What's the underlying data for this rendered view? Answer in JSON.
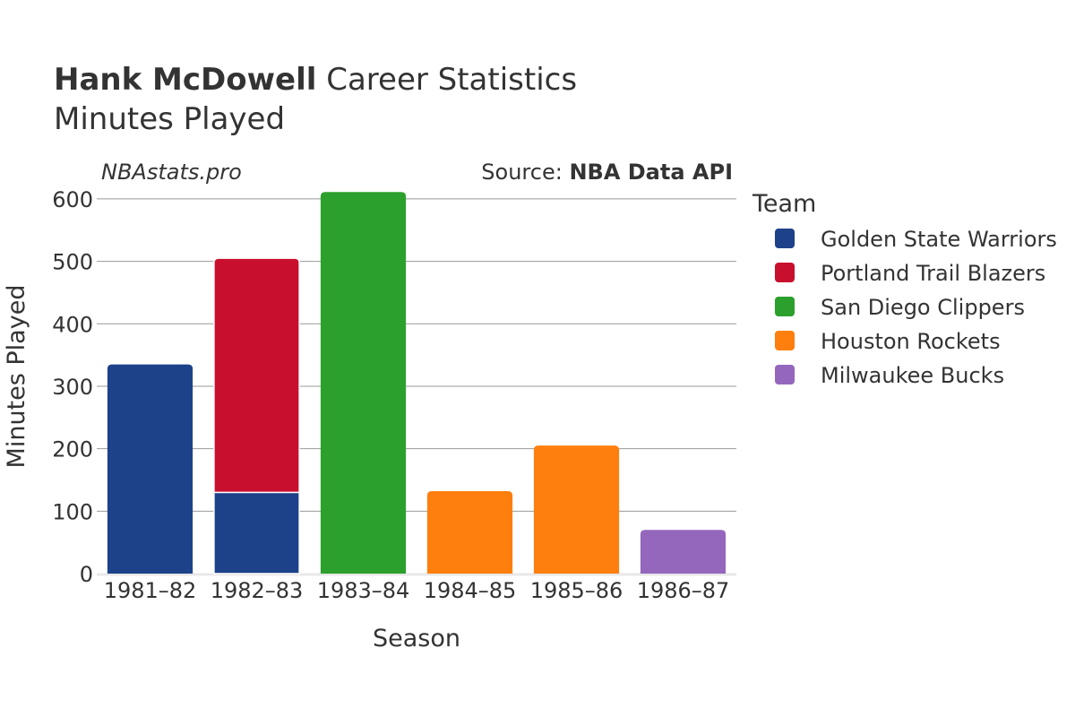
{
  "title": {
    "bold": "Hank McDowell",
    "rest": " Career Statistics",
    "subtitle": "Minutes Played"
  },
  "watermark": "NBAstats.pro",
  "source": {
    "prefix": "Source: ",
    "name": "NBA Data API"
  },
  "chart_data": {
    "type": "bar",
    "stacked": true,
    "categories": [
      "1981–82",
      "1982–83",
      "1983–84",
      "1984–85",
      "1985–86",
      "1986–87"
    ],
    "xlabel": "Season",
    "ylabel": "Minutes Played",
    "ylim": [
      0,
      620
    ],
    "yticks": [
      0,
      100,
      200,
      300,
      400,
      500,
      600
    ],
    "grid": true,
    "legend": {
      "title": "Team",
      "placement": "right"
    },
    "series": [
      {
        "name": "Golden State Warriors",
        "color": "#1d428a",
        "values": [
          335,
          130,
          0,
          0,
          0,
          0
        ]
      },
      {
        "name": "Portland Trail Blazers",
        "color": "#c8102e",
        "values": [
          0,
          375,
          0,
          0,
          0,
          0
        ]
      },
      {
        "name": "San Diego Clippers",
        "color": "#2ca02c",
        "values": [
          0,
          0,
          611,
          0,
          0,
          0
        ]
      },
      {
        "name": "Houston Rockets",
        "color": "#ff7f0e",
        "values": [
          0,
          0,
          0,
          132,
          205,
          0
        ]
      },
      {
        "name": "Milwaukee Bucks",
        "color": "#9467bd",
        "values": [
          0,
          0,
          0,
          0,
          0,
          70
        ]
      }
    ]
  }
}
